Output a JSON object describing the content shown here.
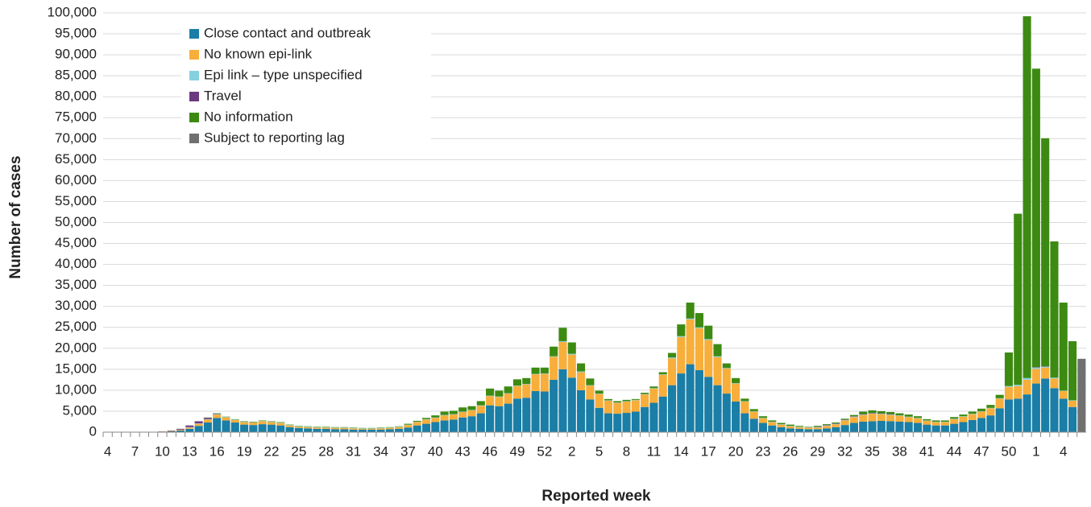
{
  "chart_data": {
    "type": "stacked_bar",
    "xlabel": "Reported week",
    "ylabel": "Number of cases",
    "categories": [
      "4",
      null,
      null,
      "7",
      null,
      null,
      "10",
      null,
      null,
      "13",
      null,
      null,
      "16",
      null,
      null,
      "19",
      null,
      null,
      "22",
      null,
      null,
      "25",
      null,
      null,
      "28",
      null,
      null,
      "31",
      null,
      null,
      "34",
      null,
      null,
      "37",
      null,
      null,
      "40",
      null,
      null,
      "43",
      null,
      null,
      "46",
      null,
      null,
      "49",
      null,
      null,
      "52",
      null,
      null,
      "2",
      null,
      null,
      "5",
      null,
      null,
      "8",
      null,
      null,
      "11",
      null,
      null,
      "14",
      null,
      null,
      "17",
      null,
      null,
      "20",
      null,
      null,
      "23",
      null,
      null,
      "26",
      null,
      null,
      "29",
      null,
      null,
      "32",
      null,
      null,
      "35",
      null,
      null,
      "38",
      null,
      null,
      "41",
      null,
      null,
      "44",
      null,
      null,
      "47",
      null,
      null,
      "50",
      null,
      null,
      "1",
      null,
      null,
      "4",
      null,
      null
    ],
    "series": [
      {
        "name": "Close contact and outbreak",
        "color": "#1a7ea6",
        "values": [
          0,
          0,
          0,
          0,
          0,
          0,
          100,
          200,
          400,
          800,
          1500,
          2300,
          3400,
          2800,
          2300,
          1800,
          1700,
          1900,
          1800,
          1600,
          1200,
          1000,
          900,
          800,
          800,
          700,
          700,
          600,
          600,
          600,
          600,
          700,
          800,
          1100,
          1600,
          2000,
          2400,
          2800,
          3000,
          3500,
          3800,
          4500,
          6400,
          6200,
          6800,
          8000,
          8200,
          9800,
          9700,
          12500,
          15000,
          13000,
          10000,
          7800,
          5800,
          4500,
          4400,
          4600,
          4900,
          6000,
          7000,
          8500,
          11200,
          14000,
          16200,
          14800,
          13200,
          11200,
          9200,
          7300,
          4500,
          3200,
          2200,
          1600,
          1200,
          900,
          800,
          700,
          700,
          900,
          1200,
          1700,
          2200,
          2500,
          2600,
          2700,
          2600,
          2500,
          2400,
          2200,
          1800,
          1600,
          1600,
          2000,
          2400,
          2900,
          3400,
          4000,
          5700,
          7800,
          8000,
          9000,
          11600,
          12800,
          10500,
          8000,
          6000,
          0
        ]
      },
      {
        "name": "No known epi-link",
        "color": "#f7ae3b",
        "values": [
          0,
          0,
          0,
          0,
          0,
          0,
          50,
          100,
          200,
          300,
          500,
          700,
          800,
          700,
          600,
          600,
          600,
          700,
          600,
          600,
          400,
          300,
          300,
          300,
          300,
          300,
          300,
          300,
          200,
          200,
          300,
          300,
          400,
          600,
          800,
          1000,
          1000,
          1200,
          1200,
          1300,
          1400,
          1800,
          2200,
          2200,
          2400,
          3000,
          3200,
          4000,
          4200,
          5500,
          6500,
          5500,
          4300,
          3300,
          3300,
          3000,
          2600,
          2700,
          2700,
          3000,
          3400,
          5200,
          6400,
          8700,
          10700,
          10000,
          8800,
          6700,
          6000,
          4300,
          2800,
          1700,
          1100,
          800,
          600,
          500,
          400,
          400,
          400,
          600,
          700,
          1100,
          1400,
          1600,
          1800,
          1600,
          1500,
          1400,
          1200,
          1100,
          900,
          800,
          800,
          1100,
          1300,
          1400,
          1500,
          1700,
          2300,
          3000,
          3000,
          3500,
          3500,
          2600,
          2300,
          1800,
          1500,
          0
        ]
      },
      {
        "name": "Epi link – type unspecified",
        "color": "#86d1e0",
        "values": [
          0,
          0,
          0,
          0,
          0,
          0,
          0,
          0,
          0,
          100,
          100,
          100,
          100,
          100,
          100,
          100,
          100,
          100,
          100,
          100,
          100,
          100,
          100,
          100,
          100,
          100,
          100,
          100,
          100,
          100,
          100,
          100,
          100,
          100,
          100,
          100,
          100,
          100,
          100,
          100,
          100,
          100,
          100,
          100,
          100,
          100,
          100,
          100,
          100,
          100,
          200,
          200,
          200,
          100,
          100,
          100,
          100,
          100,
          100,
          100,
          100,
          100,
          200,
          200,
          200,
          200,
          200,
          200,
          100,
          100,
          100,
          100,
          100,
          100,
          100,
          100,
          100,
          100,
          100,
          100,
          100,
          100,
          100,
          100,
          100,
          100,
          100,
          100,
          100,
          100,
          100,
          100,
          100,
          100,
          100,
          100,
          100,
          100,
          100,
          200,
          300,
          400,
          300,
          200,
          200,
          100,
          100,
          0
        ]
      },
      {
        "name": "Travel",
        "color": "#6b3a80",
        "values": [
          0,
          0,
          0,
          0,
          0,
          0,
          50,
          100,
          200,
          400,
          500,
          300,
          100,
          0,
          0,
          0,
          0,
          0,
          0,
          0,
          0,
          0,
          0,
          0,
          0,
          0,
          0,
          0,
          0,
          0,
          0,
          0,
          0,
          0,
          0,
          0,
          0,
          0,
          0,
          0,
          0,
          0,
          0,
          0,
          0,
          0,
          0,
          0,
          0,
          0,
          0,
          0,
          0,
          0,
          0,
          0,
          0,
          0,
          0,
          0,
          0,
          0,
          0,
          0,
          0,
          0,
          0,
          0,
          0,
          0,
          0,
          0,
          0,
          0,
          0,
          0,
          0,
          0,
          100,
          100,
          100,
          100,
          100,
          100,
          100,
          100,
          100,
          0,
          0,
          0,
          0,
          0,
          0,
          0,
          0,
          0,
          0,
          0,
          0,
          0,
          0,
          0,
          100,
          100,
          0,
          0,
          0,
          0
        ]
      },
      {
        "name": "No information",
        "color": "#3d8a12",
        "values": [
          0,
          0,
          0,
          0,
          0,
          0,
          0,
          0,
          0,
          0,
          0,
          100,
          100,
          100,
          100,
          100,
          100,
          100,
          100,
          100,
          100,
          100,
          100,
          100,
          100,
          100,
          100,
          100,
          100,
          100,
          100,
          100,
          100,
          200,
          200,
          300,
          500,
          800,
          800,
          1000,
          900,
          1000,
          1700,
          1400,
          1600,
          1500,
          1400,
          1500,
          1400,
          2300,
          3200,
          2700,
          1900,
          1600,
          700,
          300,
          300,
          300,
          200,
          300,
          400,
          500,
          1100,
          2800,
          3800,
          3400,
          3200,
          2900,
          1100,
          1200,
          600,
          500,
          400,
          300,
          300,
          300,
          200,
          100,
          200,
          200,
          200,
          200,
          300,
          600,
          600,
          500,
          500,
          500,
          500,
          400,
          300,
          300,
          300,
          400,
          400,
          500,
          600,
          700,
          800,
          8000,
          40800,
          86300,
          71200,
          54400,
          32500,
          21000,
          14100,
          0
        ]
      },
      {
        "name": "Subject to reporting lag",
        "color": "#707070",
        "values": [
          0,
          0,
          0,
          0,
          0,
          0,
          0,
          0,
          0,
          0,
          0,
          0,
          0,
          0,
          0,
          0,
          0,
          0,
          0,
          0,
          0,
          0,
          0,
          0,
          0,
          0,
          0,
          0,
          0,
          0,
          0,
          0,
          0,
          0,
          0,
          0,
          0,
          0,
          0,
          0,
          0,
          0,
          0,
          0,
          0,
          0,
          0,
          0,
          0,
          0,
          0,
          0,
          0,
          0,
          0,
          0,
          0,
          0,
          0,
          0,
          0,
          0,
          0,
          0,
          0,
          0,
          0,
          0,
          0,
          0,
          0,
          0,
          0,
          0,
          0,
          0,
          0,
          0,
          0,
          0,
          0,
          0,
          0,
          0,
          0,
          0,
          0,
          0,
          0,
          0,
          0,
          0,
          0,
          0,
          0,
          0,
          0,
          0,
          0,
          0,
          0,
          0,
          0,
          0,
          0,
          0,
          0,
          17500
        ]
      }
    ],
    "ylim": [
      0,
      100000
    ],
    "yticks": [
      0,
      {
        "value": 5000,
        "label": "5,000"
      },
      {
        "value": 10000,
        "label": "10,000"
      },
      {
        "value": 15000,
        "label": "15,000"
      },
      {
        "value": 20000,
        "label": "20,000"
      },
      {
        "value": 25000,
        "label": "25,000"
      },
      {
        "value": 30000,
        "label": "30,000"
      },
      {
        "value": 35000,
        "label": "35,000"
      },
      {
        "value": 40000,
        "label": "40,000"
      },
      {
        "value": 45000,
        "label": "45,000"
      },
      {
        "value": 50000,
        "label": "50,000"
      },
      {
        "value": 55000,
        "label": "55,000"
      },
      {
        "value": 60000,
        "label": "60,000"
      },
      {
        "value": 65000,
        "label": "65,000"
      },
      {
        "value": 70000,
        "label": "70,000"
      },
      {
        "value": 75000,
        "label": "75,000"
      },
      {
        "value": 80000,
        "label": "80,000"
      },
      {
        "value": 85000,
        "label": "85,000"
      },
      {
        "value": 90000,
        "label": "90,000"
      },
      {
        "value": 95000,
        "label": "95,000"
      },
      {
        "value": 100000,
        "label": "100,000"
      }
    ],
    "grid": true,
    "legend": "top-left"
  }
}
